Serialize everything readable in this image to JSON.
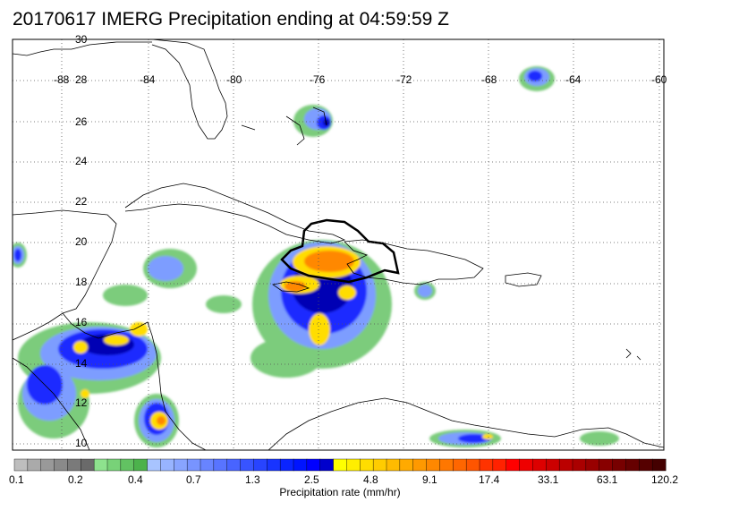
{
  "title": "20170617 IMERG Precipitation ending at 04:59:59 Z",
  "map": {
    "lon_labels": [
      "-88",
      "-84",
      "-80",
      "-76",
      "-72",
      "-68",
      "-64",
      "-60"
    ],
    "lat_labels": [
      "30",
      "28",
      "26",
      "24",
      "22",
      "20",
      "18",
      "16",
      "14",
      "12",
      "10"
    ],
    "lon_range": [
      -90,
      -60
    ],
    "lat_range": [
      9.5,
      30
    ],
    "grid": "dotted"
  },
  "colorbar": {
    "title": "Precipitation rate (mm/hr)",
    "tick_labels": [
      "0.1",
      "0.2",
      "0.4",
      "0.7",
      "1.3",
      "2.5",
      "4.8",
      "9.1",
      "17.4",
      "33.1",
      "63.1",
      "120.2"
    ],
    "colors": [
      "#bebebe",
      "#aaaaaa",
      "#999999",
      "#8a8a8a",
      "#7a7a7a",
      "#6a6a6a",
      "#8ee28e",
      "#78d278",
      "#62c262",
      "#4cb24c",
      "#a8c4ff",
      "#98b4ff",
      "#88a4ff",
      "#7894ff",
      "#6884ff",
      "#5874ff",
      "#4864ff",
      "#3854ff",
      "#2844ff",
      "#1834ff",
      "#0a24ff",
      "#0014ff",
      "#0000ff",
      "#0000cc",
      "#ffff00",
      "#ffee00",
      "#ffdd00",
      "#ffcc00",
      "#ffbb00",
      "#ffaa00",
      "#ff9900",
      "#ff8800",
      "#ff7700",
      "#ff6600",
      "#ff5500",
      "#ff3300",
      "#ff2200",
      "#ff0000",
      "#ee0000",
      "#dd0000",
      "#cc0000",
      "#bb0000",
      "#aa0000",
      "#990000",
      "#880000",
      "#770000",
      "#660000",
      "#550000",
      "#440000"
    ]
  }
}
